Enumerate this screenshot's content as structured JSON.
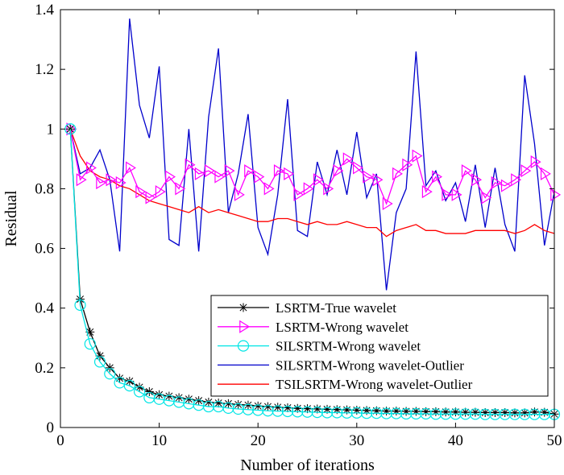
{
  "chart_data": {
    "type": "line",
    "title": "",
    "xlabel": "Number of iterations",
    "ylabel": "Residual",
    "xlim": [
      0,
      50
    ],
    "ylim": [
      0,
      1.4
    ],
    "xticks": [
      "0",
      "10",
      "20",
      "30",
      "40",
      "50"
    ],
    "yticks": [
      "0",
      "0.2",
      "0.4",
      "0.6",
      "0.8",
      "1",
      "1.2",
      "1.4"
    ],
    "x": [
      1,
      2,
      3,
      4,
      5,
      6,
      7,
      8,
      9,
      10,
      11,
      12,
      13,
      14,
      15,
      16,
      17,
      18,
      19,
      20,
      21,
      22,
      23,
      24,
      25,
      26,
      27,
      28,
      29,
      30,
      31,
      32,
      33,
      34,
      35,
      36,
      37,
      38,
      39,
      40,
      41,
      42,
      43,
      44,
      45,
      46,
      47,
      48,
      49,
      50
    ],
    "legend_position": "bottom-right",
    "series": [
      {
        "name": "LSRTM-True wavelet",
        "color": "#000000",
        "marker": "asterisk",
        "values": [
          1.0,
          0.43,
          0.32,
          0.24,
          0.2,
          0.165,
          0.155,
          0.135,
          0.12,
          0.11,
          0.105,
          0.1,
          0.095,
          0.09,
          0.085,
          0.082,
          0.08,
          0.077,
          0.075,
          0.072,
          0.07,
          0.068,
          0.066,
          0.064,
          0.063,
          0.062,
          0.061,
          0.06,
          0.059,
          0.058,
          0.057,
          0.056,
          0.055,
          0.055,
          0.054,
          0.054,
          0.053,
          0.053,
          0.052,
          0.052,
          0.051,
          0.051,
          0.05,
          0.05,
          0.05,
          0.049,
          0.049,
          0.052,
          0.051,
          0.045
        ]
      },
      {
        "name": "LSRTM-Wrong wavelet",
        "color": "#ff00ff",
        "marker": "triangle-right",
        "values": [
          1.0,
          0.83,
          0.87,
          0.82,
          0.83,
          0.82,
          0.87,
          0.79,
          0.77,
          0.79,
          0.84,
          0.8,
          0.88,
          0.85,
          0.86,
          0.84,
          0.86,
          0.78,
          0.86,
          0.84,
          0.8,
          0.86,
          0.85,
          0.78,
          0.8,
          0.83,
          0.8,
          0.86,
          0.9,
          0.87,
          0.84,
          0.83,
          0.75,
          0.85,
          0.88,
          0.91,
          0.79,
          0.84,
          0.78,
          0.78,
          0.86,
          0.83,
          0.77,
          0.82,
          0.81,
          0.83,
          0.86,
          0.89,
          0.85,
          0.78
        ]
      },
      {
        "name": "SILSRTM-Wrong wavelet",
        "color": "#00e5e5",
        "marker": "circle",
        "values": [
          1.0,
          0.41,
          0.28,
          0.22,
          0.18,
          0.15,
          0.14,
          0.12,
          0.1,
          0.095,
          0.09,
          0.085,
          0.08,
          0.075,
          0.07,
          0.07,
          0.065,
          0.062,
          0.06,
          0.058,
          0.056,
          0.055,
          0.054,
          0.053,
          0.052,
          0.051,
          0.05,
          0.05,
          0.049,
          0.049,
          0.048,
          0.048,
          0.047,
          0.047,
          0.046,
          0.046,
          0.046,
          0.045,
          0.045,
          0.045,
          0.045,
          0.045,
          0.044,
          0.044,
          0.044,
          0.044,
          0.044,
          0.044,
          0.044,
          0.044
        ]
      },
      {
        "name": "SILSRTM-Wrong wavelet-Outlier",
        "color": "#0000cc",
        "marker": "none",
        "values": [
          1.0,
          0.85,
          0.87,
          0.93,
          0.83,
          0.59,
          1.37,
          1.08,
          0.97,
          1.21,
          0.63,
          0.61,
          1.0,
          0.59,
          1.04,
          1.27,
          0.72,
          0.85,
          1.05,
          0.67,
          0.58,
          0.78,
          1.1,
          0.66,
          0.64,
          0.89,
          0.78,
          0.93,
          0.78,
          0.99,
          0.77,
          0.85,
          0.46,
          0.72,
          0.8,
          1.26,
          0.81,
          0.86,
          0.76,
          0.82,
          0.69,
          0.88,
          0.67,
          0.87,
          0.68,
          0.59,
          1.18,
          0.95,
          0.61,
          0.79
        ]
      },
      {
        "name": "TSILSRTM-Wrong wavelet-Outlier",
        "color": "#ff0000",
        "marker": "none",
        "values": [
          1.0,
          0.91,
          0.86,
          0.84,
          0.83,
          0.81,
          0.8,
          0.78,
          0.76,
          0.75,
          0.74,
          0.73,
          0.72,
          0.74,
          0.72,
          0.73,
          0.72,
          0.71,
          0.7,
          0.69,
          0.69,
          0.7,
          0.7,
          0.69,
          0.68,
          0.69,
          0.68,
          0.68,
          0.69,
          0.68,
          0.67,
          0.67,
          0.64,
          0.66,
          0.67,
          0.68,
          0.66,
          0.66,
          0.65,
          0.65,
          0.65,
          0.66,
          0.66,
          0.66,
          0.66,
          0.65,
          0.66,
          0.68,
          0.66,
          0.65
        ]
      }
    ]
  }
}
